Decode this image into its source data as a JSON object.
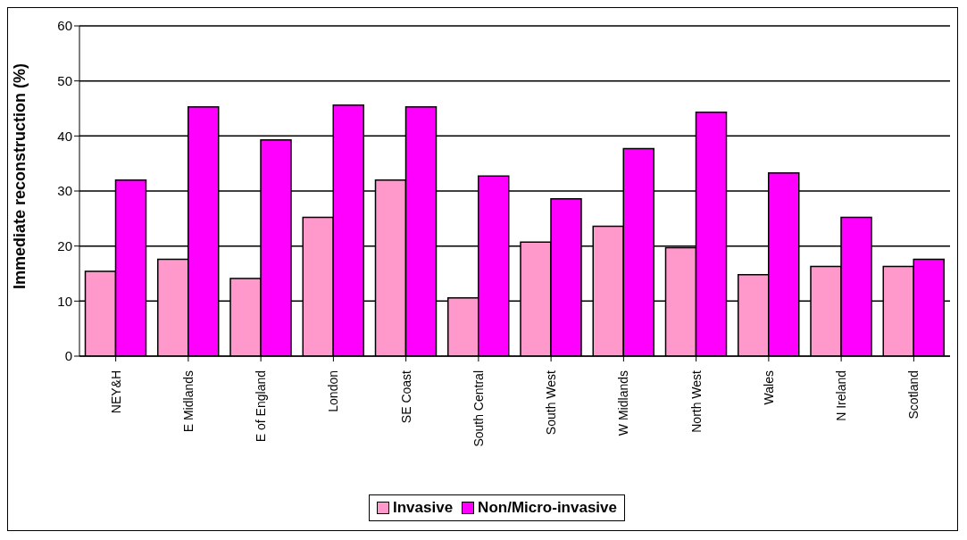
{
  "chart_data": {
    "type": "bar",
    "ylabel": "Immediate reconstruction (%)",
    "categories": [
      "NEY&H",
      "E Midlands",
      "E of England",
      "London",
      "SE Coast",
      "South Central",
      "South West",
      "W Midlands",
      "North West",
      "Wales",
      "N Ireland",
      "Scotland"
    ],
    "series": [
      {
        "name": "Invasive",
        "color": "#ff99cc",
        "values": [
          15.4,
          17.6,
          14.1,
          25.2,
          32.0,
          10.6,
          20.7,
          23.6,
          19.7,
          14.8,
          16.3,
          16.3
        ]
      },
      {
        "name": "Non/Micro-invasive",
        "color": "#ff00ff",
        "values": [
          32.0,
          45.3,
          39.3,
          45.6,
          45.3,
          32.7,
          28.6,
          37.7,
          44.3,
          33.3,
          25.2,
          17.6
        ]
      }
    ],
    "ylim": [
      0,
      60
    ],
    "yticks": [
      0,
      10,
      20,
      30,
      40,
      50,
      60
    ],
    "grid": "y",
    "legend": "bottom"
  }
}
